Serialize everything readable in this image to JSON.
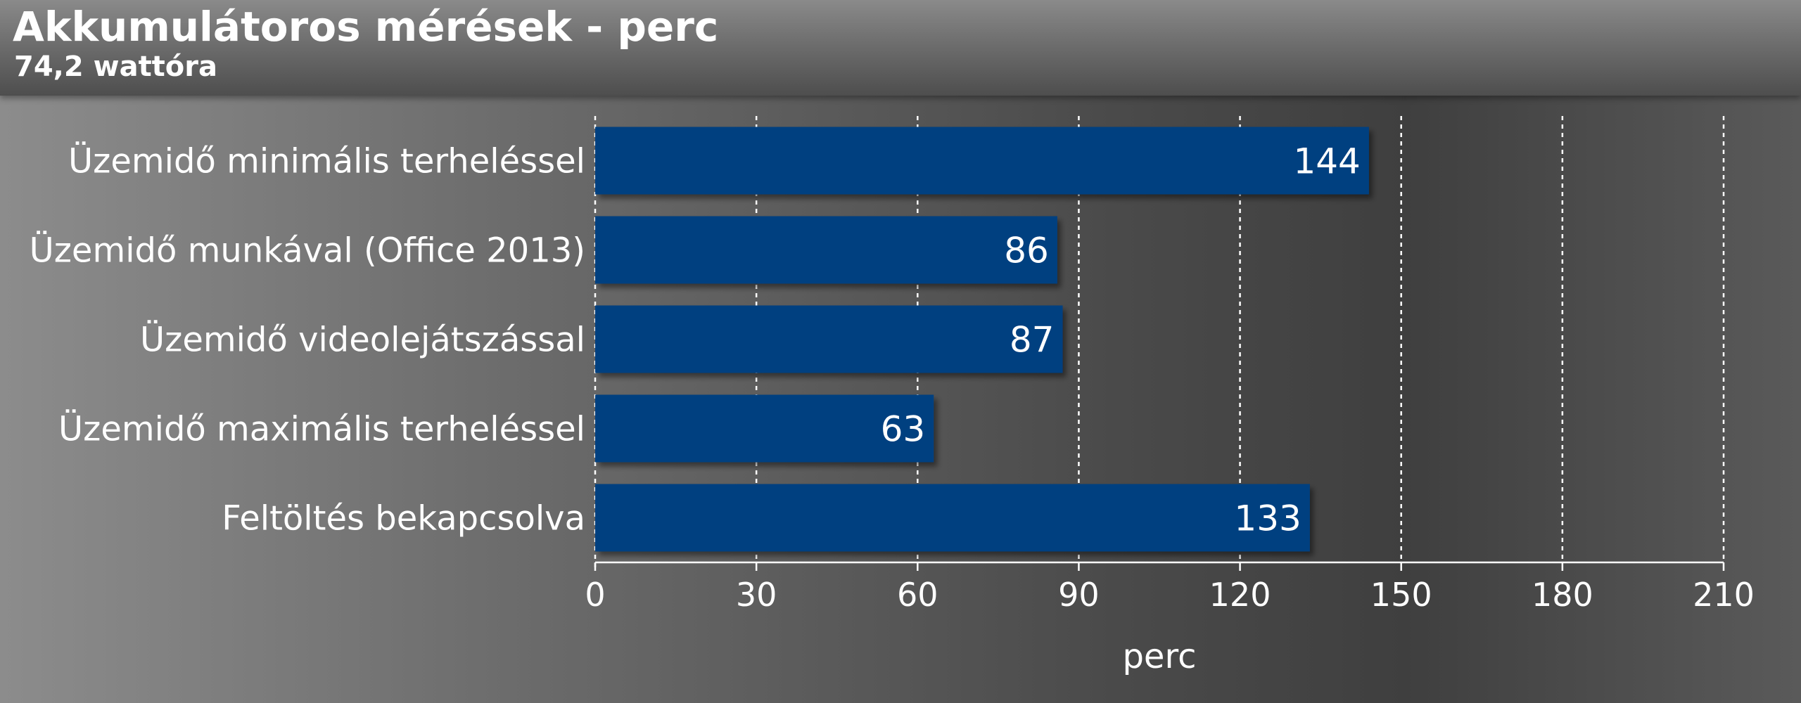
{
  "header": {
    "title": "Akkumulátoros mérések - perc",
    "subtitle": "74,2 wattóra"
  },
  "chart_data": {
    "type": "bar",
    "orientation": "horizontal",
    "categories": [
      "Üzemidő minimális terheléssel",
      "Üzemidő munkával (Office 2013)",
      "Üzemidő videolejátszással",
      "Üzemidő maximális terheléssel",
      "Feltöltés bekapcsolva"
    ],
    "values": [
      144,
      86,
      87,
      63,
      133
    ],
    "xlabel": "perc",
    "xlim": [
      0,
      210
    ],
    "xticks": [
      0,
      30,
      60,
      90,
      120,
      150,
      180,
      210
    ],
    "grid": "vertical dashed",
    "data_labels": true,
    "colors": {
      "bar": "#003f80",
      "text": "#ffffff",
      "grid": "#ffffff"
    }
  }
}
